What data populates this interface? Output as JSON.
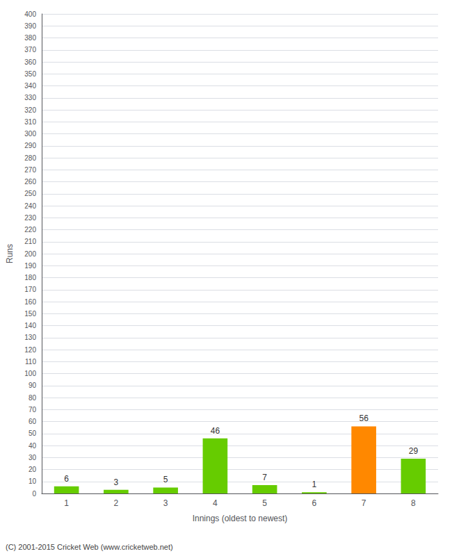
{
  "chart_data": {
    "type": "bar",
    "categories": [
      "1",
      "2",
      "3",
      "4",
      "5",
      "6",
      "7",
      "8"
    ],
    "values": [
      6,
      3,
      5,
      46,
      7,
      1,
      56,
      29
    ],
    "colors": [
      "#66cc00",
      "#66cc00",
      "#66cc00",
      "#66cc00",
      "#66cc00",
      "#66cc00",
      "#ff8800",
      "#66cc00"
    ],
    "xlabel": "Innings (oldest to newest)",
    "ylabel": "Runs",
    "ylim": [
      0,
      400
    ],
    "yticks": [
      0,
      10,
      20,
      30,
      40,
      50,
      60,
      70,
      80,
      90,
      100,
      110,
      120,
      130,
      140,
      150,
      160,
      170,
      180,
      190,
      200,
      210,
      220,
      230,
      240,
      250,
      260,
      270,
      280,
      290,
      300,
      310,
      320,
      330,
      340,
      350,
      360,
      370,
      380,
      390,
      400
    ],
    "grid": true,
    "data_labels": true,
    "annotations": [
      "(C) 2001-2015 Cricket Web (www.cricketweb.net)"
    ]
  }
}
